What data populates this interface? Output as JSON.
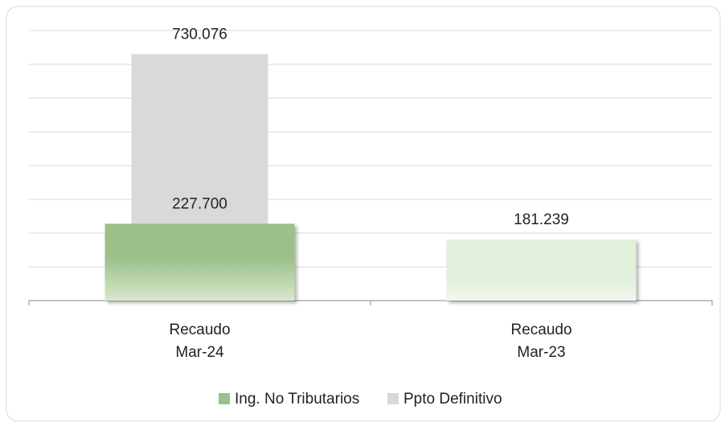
{
  "chart_data": {
    "type": "bar",
    "categories": [
      "Recaudo\nMar-24",
      "Recaudo\nMar-23"
    ],
    "series": [
      {
        "name": "Ing. No Tributarios",
        "color": "#9bc189",
        "colors": [
          "#9bc189",
          "#e2efda"
        ],
        "values": [
          227.7,
          181.239
        ],
        "value_labels": [
          "227.700",
          "181.239"
        ]
      },
      {
        "name": "Ppto Definitivo",
        "color": "#d9d9d9",
        "values": [
          730.076,
          null
        ],
        "value_labels": [
          "730.076",
          null
        ]
      }
    ],
    "ylim": [
      0,
      800
    ],
    "yticks": [
      0,
      100,
      200,
      300,
      400,
      500,
      600,
      700,
      800
    ],
    "grid": true,
    "legend": "bottom"
  }
}
